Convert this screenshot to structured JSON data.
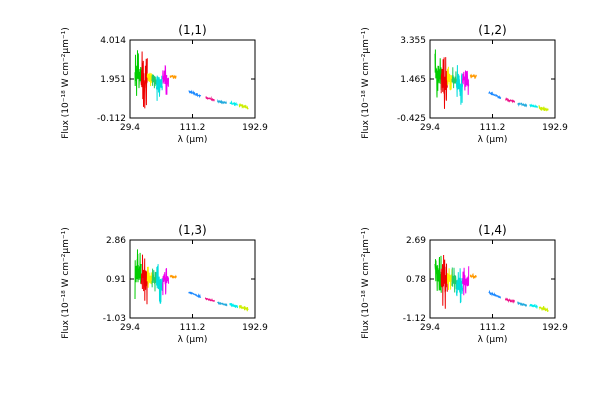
{
  "chart_data": [
    {
      "type": "line",
      "title": "(1,1)",
      "xlabel": "λ (μm)",
      "ylabel": "Flux (10⁻¹⁸ W cm⁻²μm⁻¹)",
      "xticks": [
        "29.4",
        "111.2",
        "192.9"
      ],
      "yticks": [
        "-0.112",
        "1.951",
        "4.014"
      ],
      "xlim": [
        29.4,
        192.9
      ],
      "ylim": [
        -0.112,
        4.014
      ],
      "grid": false
    },
    {
      "type": "line",
      "title": "(1,2)",
      "xlabel": "λ (μm)",
      "ylabel": "Flux (10⁻¹⁸ W cm⁻²μm⁻¹)",
      "xticks": [
        "29.4",
        "111.2",
        "192.9"
      ],
      "yticks": [
        "-0.425",
        "1.465",
        "3.355"
      ],
      "xlim": [
        29.4,
        192.9
      ],
      "ylim": [
        -0.425,
        3.355
      ],
      "grid": false
    },
    {
      "type": "line",
      "title": "(1,3)",
      "xlabel": "λ (μm)",
      "ylabel": "Flux (10⁻¹⁸ W cm⁻²μm⁻¹)",
      "xticks": [
        "29.4",
        "111.2",
        "192.9"
      ],
      "yticks": [
        "-1.03",
        "0.91",
        "2.86"
      ],
      "xlim": [
        29.4,
        192.9
      ],
      "ylim": [
        -1.03,
        2.86
      ],
      "grid": false
    },
    {
      "type": "line",
      "title": "(1,4)",
      "xlabel": "λ (μm)",
      "ylabel": "Flux (10⁻¹⁸ W cm⁻²μm⁻¹)",
      "xticks": [
        "29.4",
        "111.2",
        "192.9"
      ],
      "yticks": [
        "-1.12",
        "0.78",
        "2.69"
      ],
      "xlim": [
        29.4,
        192.9
      ],
      "ylim": [
        -1.12,
        2.69
      ],
      "grid": false
    }
  ],
  "segment_colors": [
    "#00cc00",
    "#ee0000",
    "#ffee00",
    "#22cc66",
    "#00dddd",
    "#ee00ee",
    "#ff9900",
    "#1a88ff",
    "#ee1188",
    "#22aadd",
    "#00eeee",
    "#ccee00"
  ],
  "spectrum_segments": [
    {
      "x": [
        36,
        44
      ],
      "base": [
        2.2,
        2.1
      ],
      "amp": 1.3
    },
    {
      "x": [
        44,
        52
      ],
      "base": [
        1.9,
        1.8
      ],
      "amp": 1.5
    },
    {
      "x": [
        52,
        58
      ],
      "base": [
        2.0,
        1.9
      ],
      "amp": 0.6
    },
    {
      "x": [
        58,
        64
      ],
      "base": [
        1.9,
        1.8
      ],
      "amp": 0.6
    },
    {
      "x": [
        64,
        72
      ],
      "base": [
        1.75,
        1.6
      ],
      "amp": 1.0
    },
    {
      "x": [
        72,
        80
      ],
      "base": [
        1.9,
        1.8
      ],
      "amp": 0.8
    },
    {
      "x": [
        82,
        90
      ],
      "base": [
        2.05,
        2.0
      ],
      "amp": 0.12
    },
    {
      "x": [
        106,
        122
      ],
      "base": [
        1.25,
        1.0
      ],
      "amp": 0.08
    },
    {
      "x": [
        128,
        140
      ],
      "base": [
        0.92,
        0.8
      ],
      "amp": 0.08
    },
    {
      "x": [
        144,
        156
      ],
      "base": [
        0.72,
        0.62
      ],
      "amp": 0.08
    },
    {
      "x": [
        160,
        170
      ],
      "base": [
        0.62,
        0.55
      ],
      "amp": 0.1
    },
    {
      "x": [
        172,
        184
      ],
      "base": [
        0.52,
        0.4
      ],
      "amp": 0.12
    }
  ]
}
